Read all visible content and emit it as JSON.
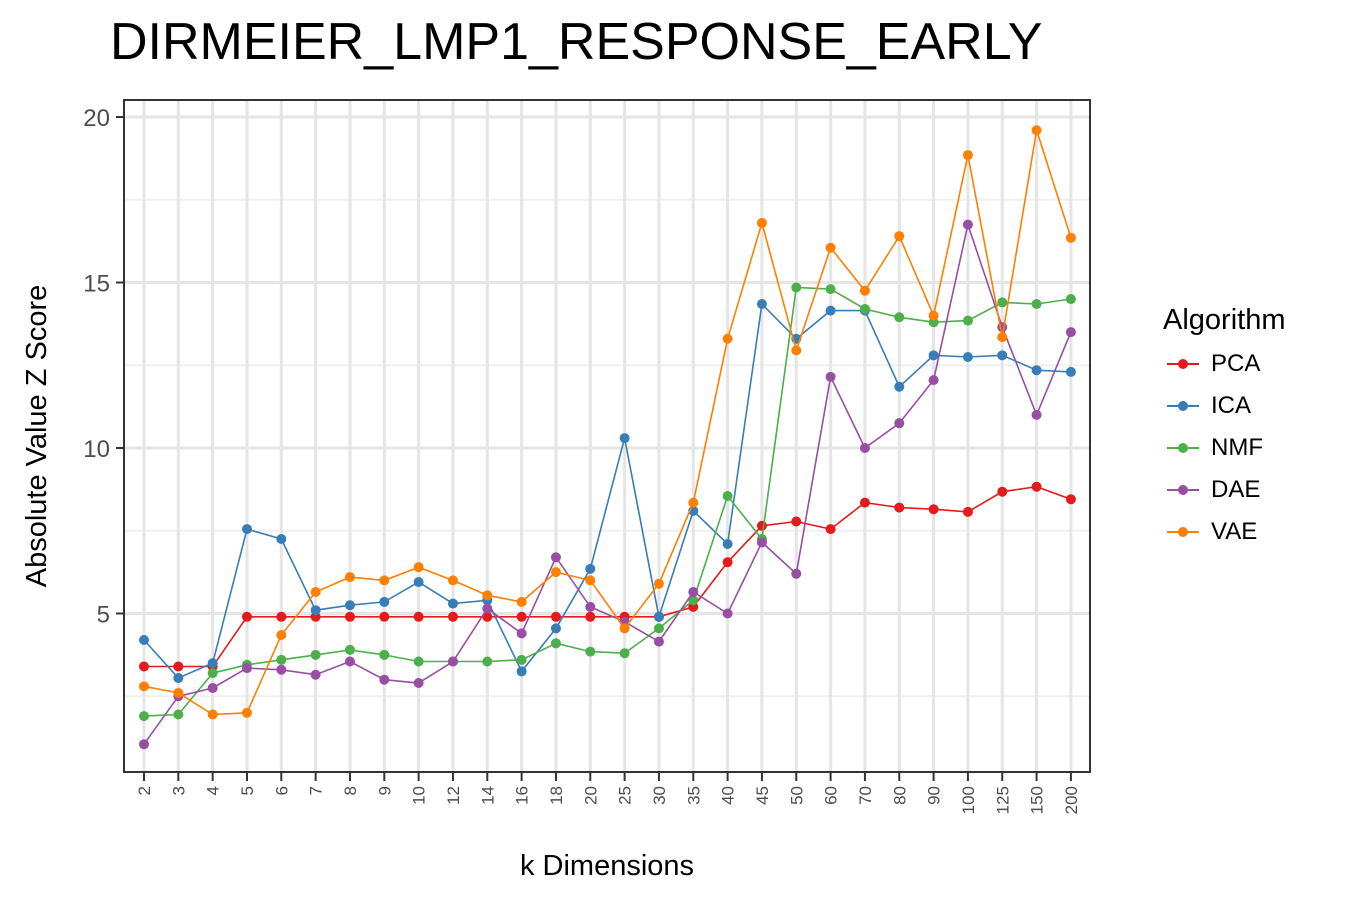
{
  "chart_data": {
    "type": "line",
    "title": "DIRMEIER_LMP1_RESPONSE_EARLY",
    "xlabel": "k Dimensions",
    "ylabel": "Absolute Value Z Score",
    "categories": [
      "2",
      "3",
      "4",
      "5",
      "6",
      "7",
      "8",
      "9",
      "10",
      "12",
      "14",
      "16",
      "18",
      "20",
      "25",
      "30",
      "35",
      "40",
      "45",
      "50",
      "60",
      "70",
      "80",
      "90",
      "100",
      "125",
      "150",
      "200"
    ],
    "yticks": [
      "5",
      "10",
      "15",
      "20"
    ],
    "ylim": [
      0,
      20.5
    ],
    "grid": true,
    "legend": {
      "title": "Algorithm",
      "position": "right"
    },
    "series": [
      {
        "name": "PCA",
        "color": "#E41A1C",
        "values": [
          3.4,
          3.4,
          3.4,
          4.9,
          4.9,
          4.9,
          4.9,
          4.9,
          4.9,
          4.9,
          4.9,
          4.9,
          4.9,
          4.9,
          4.9,
          4.9,
          5.2,
          6.55,
          7.65,
          7.78,
          7.55,
          8.35,
          8.2,
          8.15,
          8.07,
          8.68,
          8.83,
          8.45
        ]
      },
      {
        "name": "ICA",
        "color": "#377EB8",
        "values": [
          4.2,
          3.05,
          3.5,
          7.55,
          7.25,
          5.1,
          5.25,
          5.35,
          5.95,
          5.3,
          5.4,
          3.25,
          4.55,
          6.35,
          10.3,
          4.9,
          8.1,
          7.1,
          14.35,
          13.3,
          14.15,
          14.15,
          11.85,
          12.8,
          12.75,
          12.8,
          12.35,
          12.3
        ]
      },
      {
        "name": "NMF",
        "color": "#4DAF4A",
        "values": [
          1.9,
          1.95,
          3.2,
          3.45,
          3.6,
          3.75,
          3.9,
          3.75,
          3.55,
          3.55,
          3.55,
          3.6,
          4.1,
          3.85,
          3.8,
          4.55,
          5.4,
          8.55,
          7.25,
          14.85,
          14.8,
          14.2,
          13.95,
          13.8,
          13.85,
          14.4,
          14.35,
          14.5
        ]
      },
      {
        "name": "DAE",
        "color": "#984EA3",
        "values": [
          1.05,
          2.5,
          2.75,
          3.35,
          3.3,
          3.15,
          3.55,
          3.0,
          2.9,
          3.55,
          5.15,
          4.4,
          6.7,
          5.2,
          4.75,
          4.15,
          5.65,
          5.0,
          7.15,
          6.2,
          12.15,
          10.0,
          10.75,
          12.05,
          16.75,
          13.65,
          11.0,
          13.5
        ]
      },
      {
        "name": "VAE",
        "color": "#FF7F00",
        "values": [
          2.8,
          2.6,
          1.95,
          2.0,
          4.35,
          5.65,
          6.1,
          6.0,
          6.4,
          6.0,
          5.55,
          5.35,
          6.25,
          6.0,
          4.55,
          5.9,
          8.35,
          13.3,
          16.8,
          12.95,
          16.05,
          14.75,
          16.4,
          14.0,
          18.85,
          13.35,
          19.6,
          16.35
        ]
      }
    ]
  }
}
